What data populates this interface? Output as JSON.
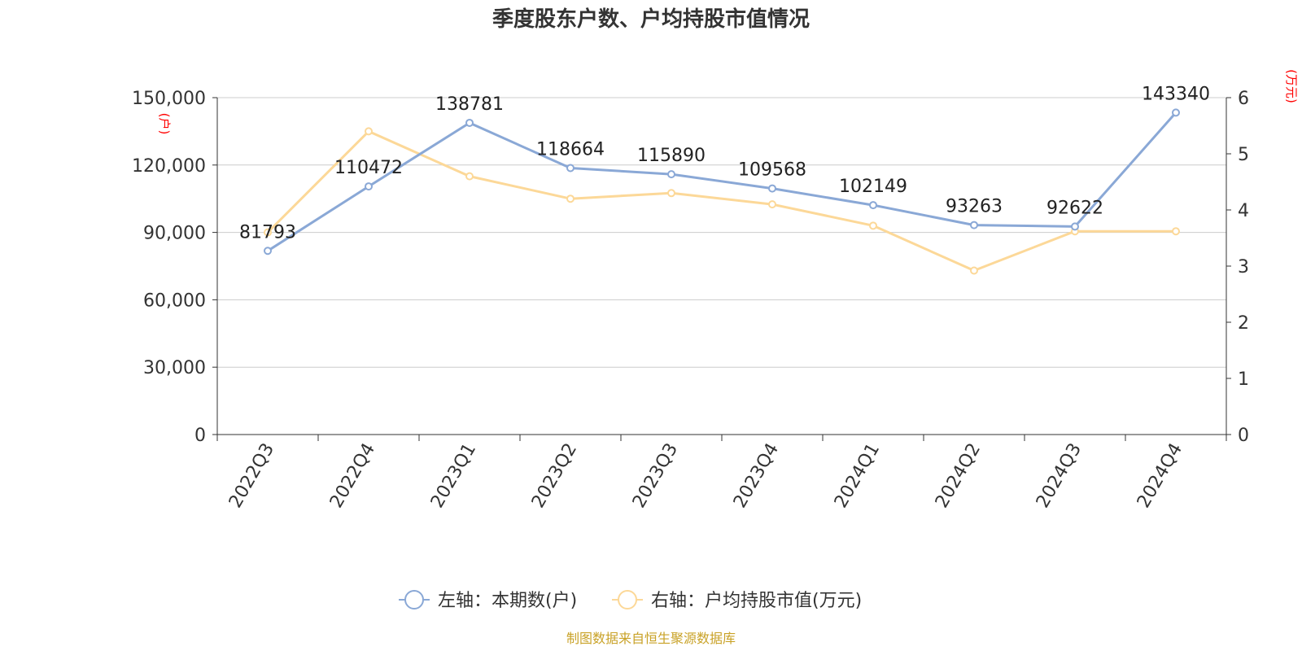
{
  "title": "季度股东户数、户均持股市值情况",
  "source_note": "制图数据来自恒生聚源数据库",
  "colors": {
    "left_series": "#8aa8d6",
    "right_series": "#fcd898",
    "grid": "#cccccc",
    "axis": "#333333",
    "unit_label": "#ff0000",
    "source": "#c9a227"
  },
  "chart_data": {
    "type": "line",
    "categories": [
      "2022Q3",
      "2022Q4",
      "2023Q1",
      "2023Q2",
      "2023Q3",
      "2023Q4",
      "2024Q1",
      "2024Q2",
      "2024Q3",
      "2024Q4"
    ],
    "left_axis": {
      "unit_label": "(户)",
      "ylim": [
        0,
        150000
      ],
      "ticks": [
        "0",
        "30,000",
        "60,000",
        "90,000",
        "120,000",
        "150,000"
      ],
      "tick_values": [
        0,
        30000,
        60000,
        90000,
        120000,
        150000
      ]
    },
    "right_axis": {
      "unit_label": "(万元)",
      "ylim": [
        0,
        6
      ],
      "ticks": [
        "0",
        "1",
        "2",
        "3",
        "4",
        "5",
        "6"
      ],
      "tick_values": [
        0,
        1,
        2,
        3,
        4,
        5,
        6
      ]
    },
    "grid": true,
    "legend_position": "bottom-center",
    "series": [
      {
        "name": "左轴：本期数(户)",
        "axis": "left",
        "values": [
          81793,
          110472,
          138781,
          118664,
          115890,
          109568,
          102149,
          93263,
          92622,
          143340
        ],
        "data_labels": [
          "81793",
          "110472",
          "138781",
          "118664",
          "115890",
          "109568",
          "102149",
          "93263",
          "92622",
          "143340"
        ]
      },
      {
        "name": "右轴：户均持股市值(万元)",
        "axis": "right",
        "values": [
          3.6,
          5.4,
          4.6,
          4.2,
          4.3,
          4.1,
          3.72,
          2.92,
          3.62,
          3.62
        ]
      }
    ]
  }
}
